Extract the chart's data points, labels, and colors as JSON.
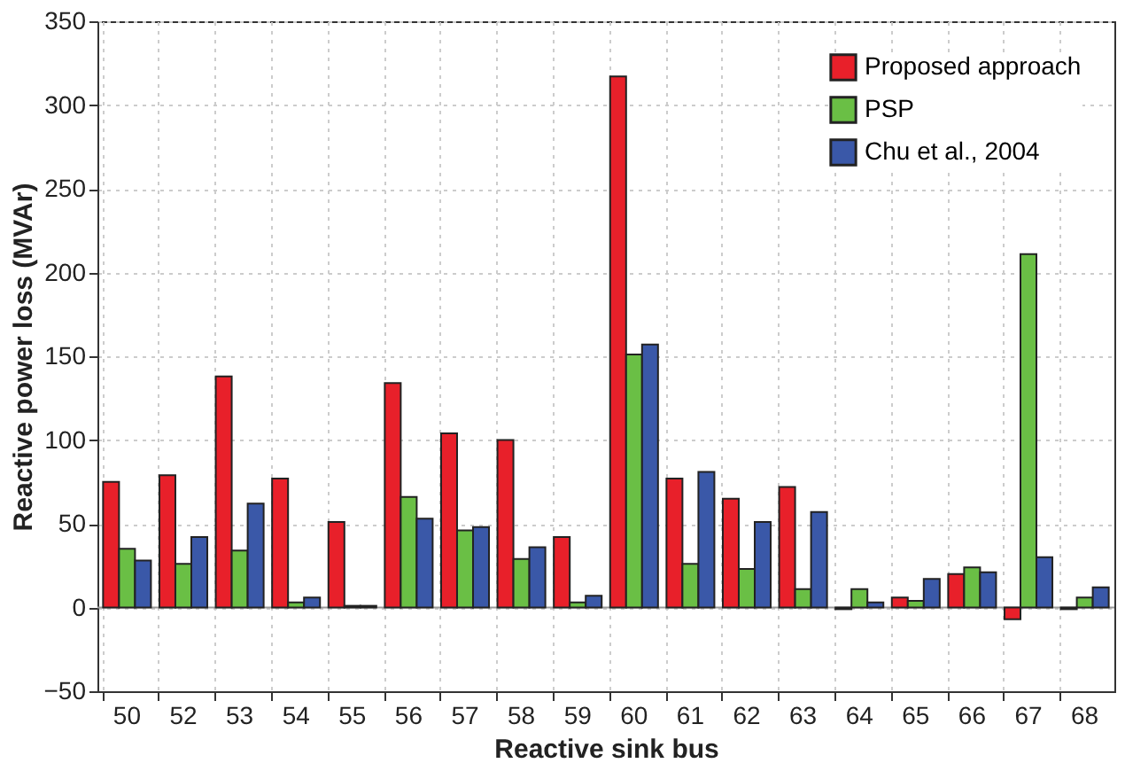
{
  "chart_data": {
    "type": "bar",
    "xlabel": "Reactive sink bus",
    "ylabel": "Reactive power loss (MVAr)",
    "categories": [
      "50",
      "52",
      "53",
      "54",
      "55",
      "56",
      "57",
      "58",
      "59",
      "60",
      "61",
      "62",
      "63",
      "64",
      "65",
      "66",
      "67",
      "68"
    ],
    "series": [
      {
        "name": "Proposed approach",
        "color": "#e8202a",
        "values": [
          75,
          79,
          138,
          77,
          51,
          134,
          104,
          100,
          42,
          317,
          77,
          65,
          72,
          -1,
          6,
          20,
          -7,
          -1
        ]
      },
      {
        "name": "PSP",
        "color": "#6abf45",
        "values": [
          35,
          26,
          34,
          3,
          1,
          66,
          46,
          29,
          3,
          151,
          26,
          23,
          11,
          11,
          4,
          24,
          211,
          6
        ]
      },
      {
        "name": "Chu et al., 2004",
        "color": "#3a58a8",
        "values": [
          28,
          42,
          62,
          6,
          1,
          53,
          48,
          36,
          7,
          157,
          81,
          51,
          57,
          3,
          17,
          21,
          30,
          12
        ]
      }
    ],
    "ylim": [
      -50,
      350
    ],
    "yticks": [
      -50,
      0,
      50,
      100,
      150,
      200,
      250,
      300,
      350
    ],
    "grid": true,
    "legend": "top right"
  }
}
